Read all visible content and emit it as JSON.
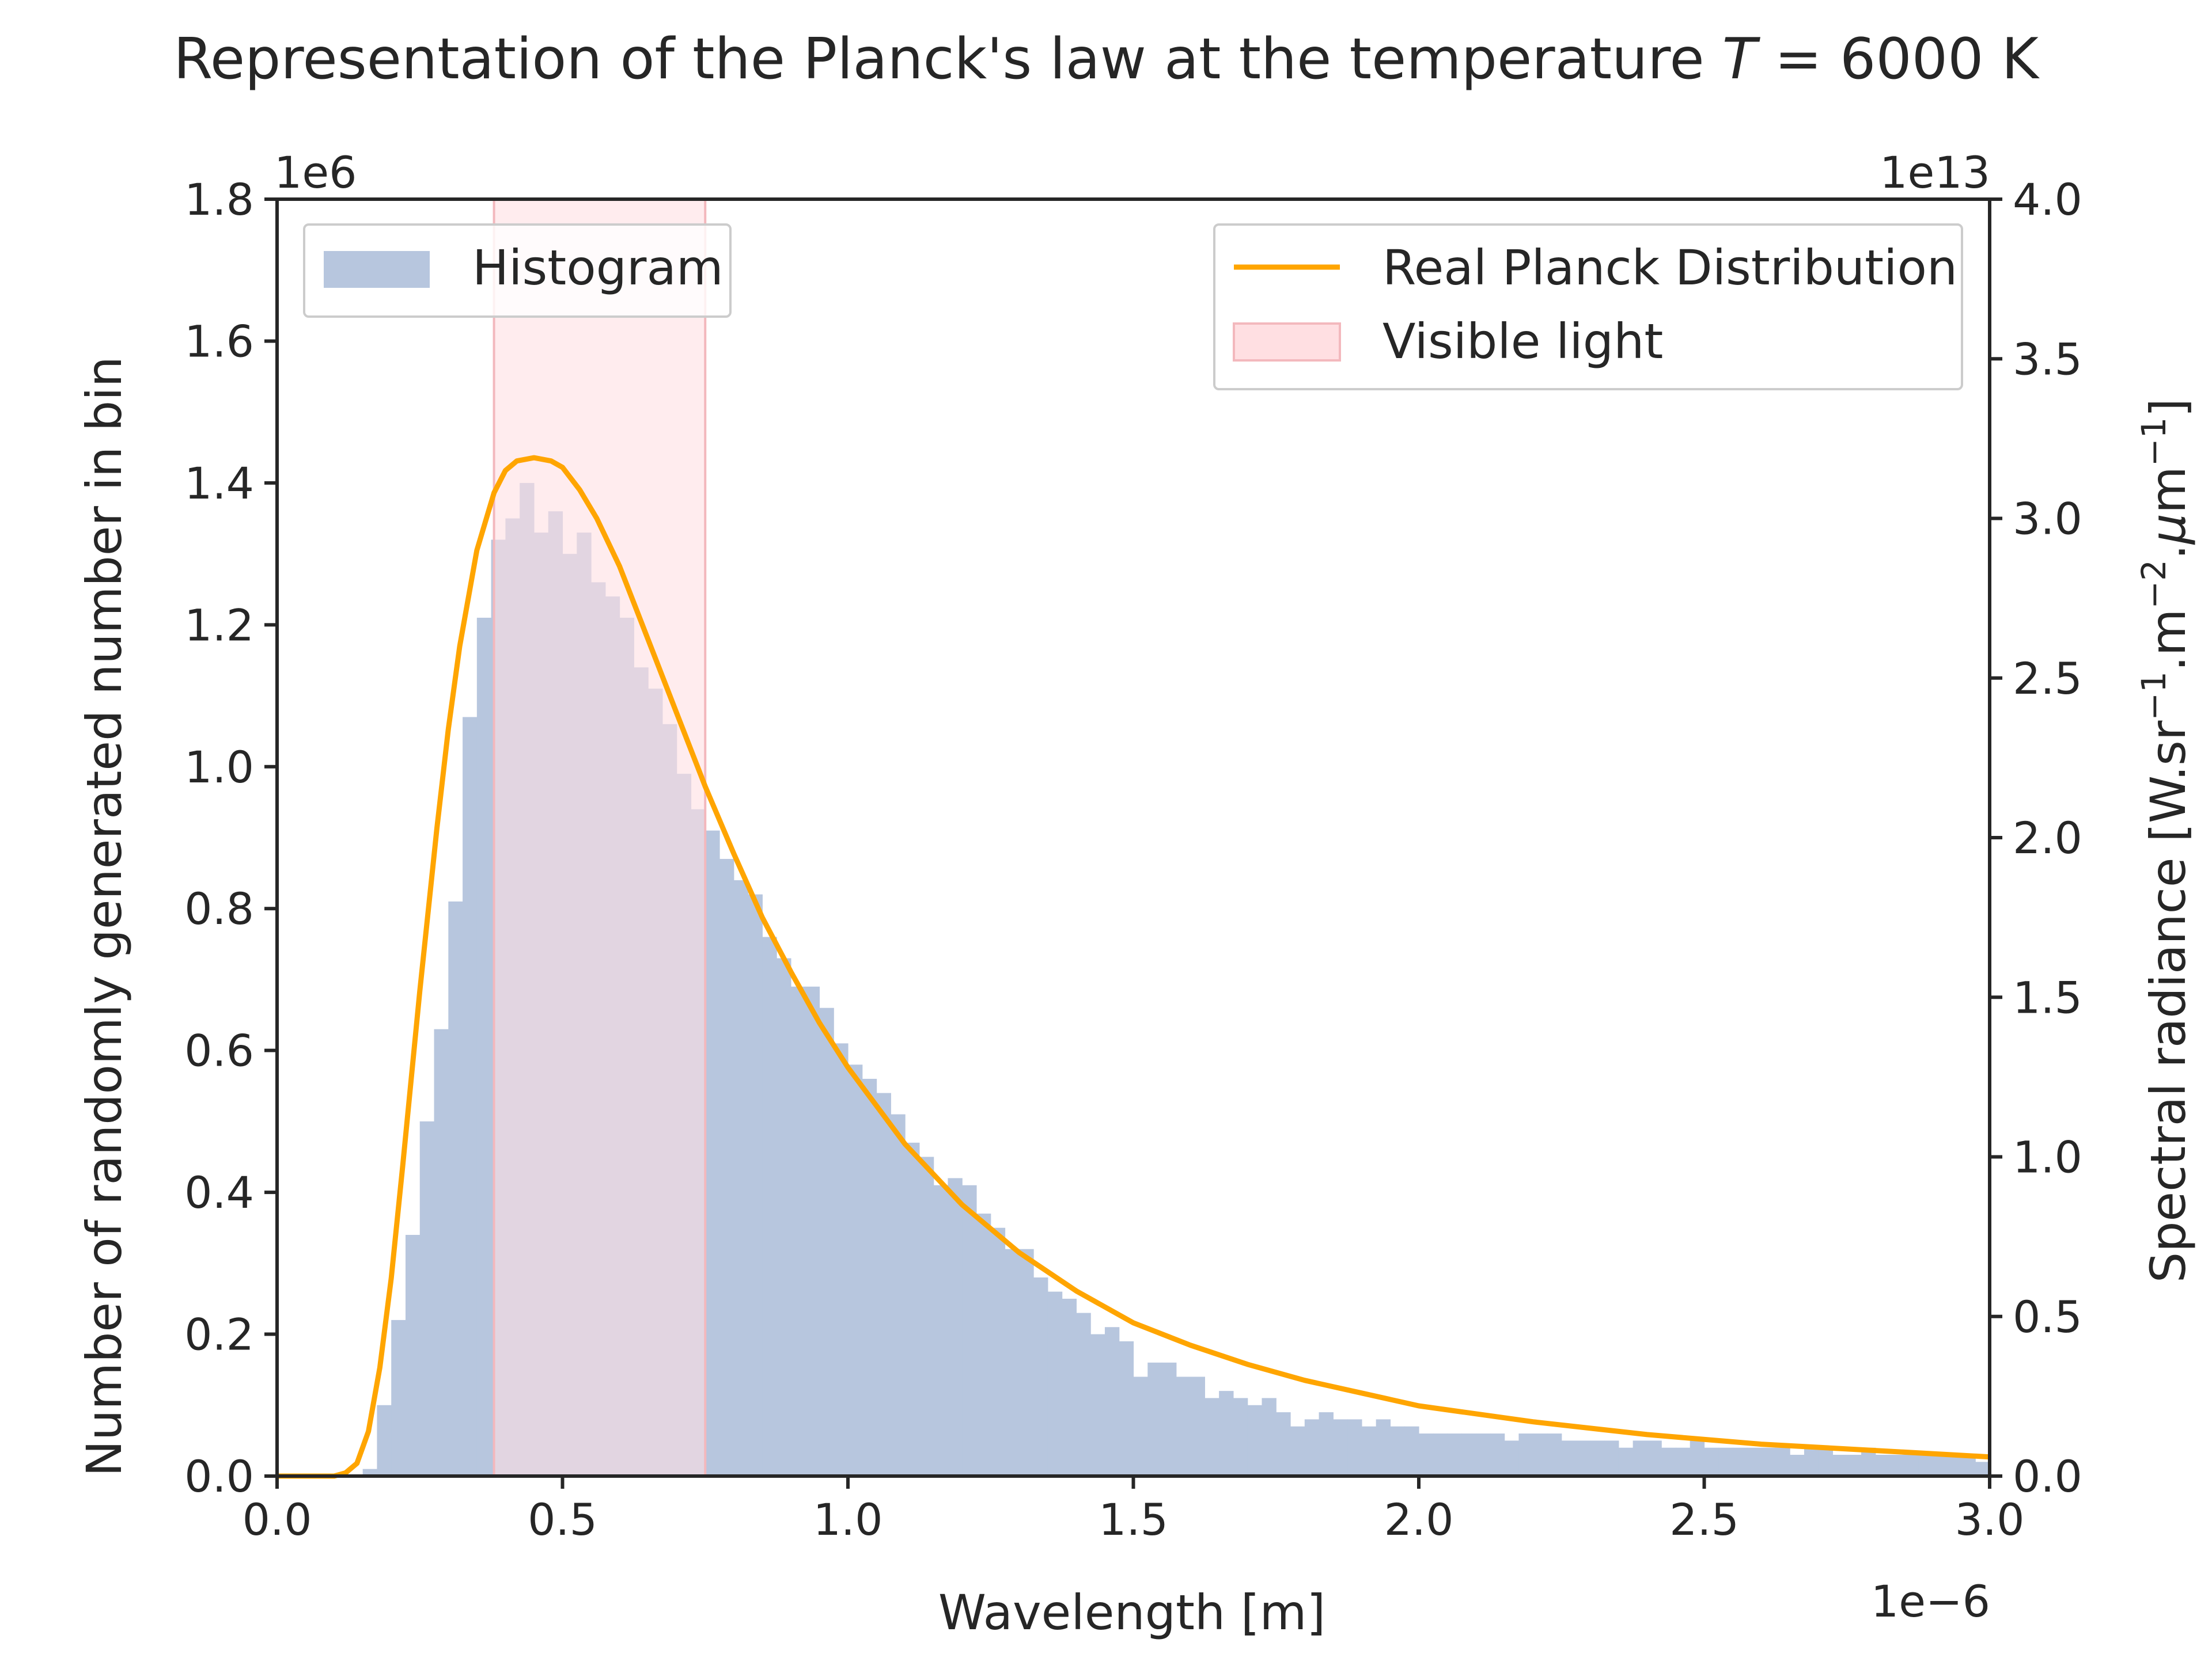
{
  "chart_data": {
    "type": "bar",
    "title_prefix": "Representation of the Planck's law at the temperature ",
    "title_var": "T",
    "title_suffix": " = 6000 K",
    "xlabel": "Wavelength [m]",
    "ylabel_left": "Number of randomly generated number in bin",
    "ylabel_right_parts": [
      "Spectral radiance [W.sr",
      "−1",
      ".m",
      "−2",
      ".",
      "μ",
      "m",
      "−1",
      "]"
    ],
    "x_multiplier": "1e−6",
    "y_left_multiplier": "1e6",
    "y_right_multiplier": "1e13",
    "xlim": [
      0.0,
      3.0
    ],
    "ylim_left": [
      0.0,
      1.8
    ],
    "ylim_right": [
      0.0,
      4.0
    ],
    "xticks": [
      "0.0",
      "0.5",
      "1.0",
      "1.5",
      "2.0",
      "2.5",
      "3.0"
    ],
    "yticks_left": [
      "0.0",
      "0.2",
      "0.4",
      "0.6",
      "0.8",
      "1.0",
      "1.2",
      "1.4",
      "1.6",
      "1.8"
    ],
    "yticks_right": [
      "0.0",
      "0.5",
      "1.0",
      "1.5",
      "2.0",
      "2.5",
      "3.0",
      "3.5",
      "4.0"
    ],
    "histogram": {
      "name": "Histogram",
      "bin_width": 0.025,
      "bin_starts": [
        0.15,
        0.175,
        0.2,
        0.225,
        0.25,
        0.275,
        0.3,
        0.325,
        0.35,
        0.375,
        0.4,
        0.425,
        0.45,
        0.475,
        0.5,
        0.525,
        0.55,
        0.575,
        0.6,
        0.625,
        0.65,
        0.675,
        0.7,
        0.725,
        0.75,
        0.775,
        0.8,
        0.825,
        0.85,
        0.875,
        0.9,
        0.925,
        0.95,
        0.975,
        1.0,
        1.025,
        1.05,
        1.075,
        1.1,
        1.125,
        1.15,
        1.175,
        1.2,
        1.225,
        1.25,
        1.275,
        1.3,
        1.325,
        1.35,
        1.375,
        1.4,
        1.425,
        1.45,
        1.475,
        1.5,
        1.525,
        1.55,
        1.575,
        1.6,
        1.625,
        1.65,
        1.675,
        1.7,
        1.725,
        1.75,
        1.775,
        1.8,
        1.825,
        1.85,
        1.875,
        1.9,
        1.925,
        1.95,
        1.975,
        2.0,
        2.025,
        2.05,
        2.075,
        2.1,
        2.125,
        2.15,
        2.175,
        2.2,
        2.225,
        2.25,
        2.275,
        2.3,
        2.325,
        2.35,
        2.375,
        2.4,
        2.425,
        2.45,
        2.475,
        2.5,
        2.525,
        2.55,
        2.575,
        2.6,
        2.625,
        2.65,
        2.675,
        2.7,
        2.725,
        2.75,
        2.775,
        2.8,
        2.825,
        2.85,
        2.875,
        2.9,
        2.925,
        2.95,
        2.975
      ],
      "values": [
        0.01,
        0.1,
        0.22,
        0.34,
        0.5,
        0.63,
        0.81,
        1.07,
        1.21,
        1.32,
        1.35,
        1.4,
        1.33,
        1.36,
        1.3,
        1.33,
        1.26,
        1.24,
        1.21,
        1.14,
        1.11,
        1.06,
        0.99,
        0.94,
        0.91,
        0.87,
        0.84,
        0.82,
        0.76,
        0.73,
        0.69,
        0.69,
        0.66,
        0.61,
        0.58,
        0.56,
        0.54,
        0.51,
        0.47,
        0.45,
        0.41,
        0.42,
        0.41,
        0.37,
        0.35,
        0.32,
        0.32,
        0.28,
        0.26,
        0.25,
        0.23,
        0.2,
        0.21,
        0.19,
        0.14,
        0.16,
        0.16,
        0.14,
        0.14,
        0.11,
        0.12,
        0.11,
        0.1,
        0.11,
        0.09,
        0.07,
        0.08,
        0.09,
        0.08,
        0.08,
        0.07,
        0.08,
        0.07,
        0.07,
        0.06,
        0.06,
        0.06,
        0.06,
        0.06,
        0.06,
        0.05,
        0.06,
        0.06,
        0.06,
        0.05,
        0.05,
        0.05,
        0.05,
        0.04,
        0.05,
        0.05,
        0.04,
        0.04,
        0.05,
        0.04,
        0.04,
        0.04,
        0.04,
        0.04,
        0.04,
        0.03,
        0.04,
        0.04,
        0.03,
        0.03,
        0.04,
        0.03,
        0.03,
        0.03,
        0.03,
        0.03,
        0.03,
        0.03,
        0.02
      ]
    },
    "planck_curve": {
      "name": "Real Planck Distribution",
      "temperature_K": 6000,
      "x": [
        0.05,
        0.1,
        0.12,
        0.14,
        0.16,
        0.18,
        0.2,
        0.22,
        0.25,
        0.28,
        0.3,
        0.32,
        0.35,
        0.38,
        0.4,
        0.42,
        0.45,
        0.48,
        0.5,
        0.53,
        0.56,
        0.6,
        0.65,
        0.7,
        0.75,
        0.8,
        0.85,
        0.9,
        0.95,
        1.0,
        1.1,
        1.2,
        1.3,
        1.4,
        1.5,
        1.6,
        1.7,
        1.8,
        1.9,
        2.0,
        2.2,
        2.4,
        2.6,
        2.8,
        3.0
      ],
      "y": [
        0.0,
        0.0,
        0.01,
        0.04,
        0.14,
        0.34,
        0.62,
        0.97,
        1.52,
        2.03,
        2.34,
        2.6,
        2.9,
        3.08,
        3.15,
        3.18,
        3.19,
        3.18,
        3.16,
        3.09,
        3.0,
        2.85,
        2.62,
        2.39,
        2.16,
        1.95,
        1.75,
        1.58,
        1.42,
        1.28,
        1.04,
        0.85,
        0.7,
        0.58,
        0.48,
        0.41,
        0.35,
        0.3,
        0.26,
        0.22,
        0.17,
        0.13,
        0.1,
        0.08,
        0.06
      ]
    },
    "visible_band": {
      "name": "Visible light",
      "x_start": 0.38,
      "x_end": 0.75
    },
    "legend_left_placement": "upper left",
    "legend_right_placement": "upper right",
    "colors": {
      "histogram": "#b7c6de",
      "curve": "#ffa500",
      "visible_fill": "#ffdfe2",
      "visible_edge": "#f3b8bd",
      "axes": "#262626",
      "text": "#262626"
    }
  }
}
